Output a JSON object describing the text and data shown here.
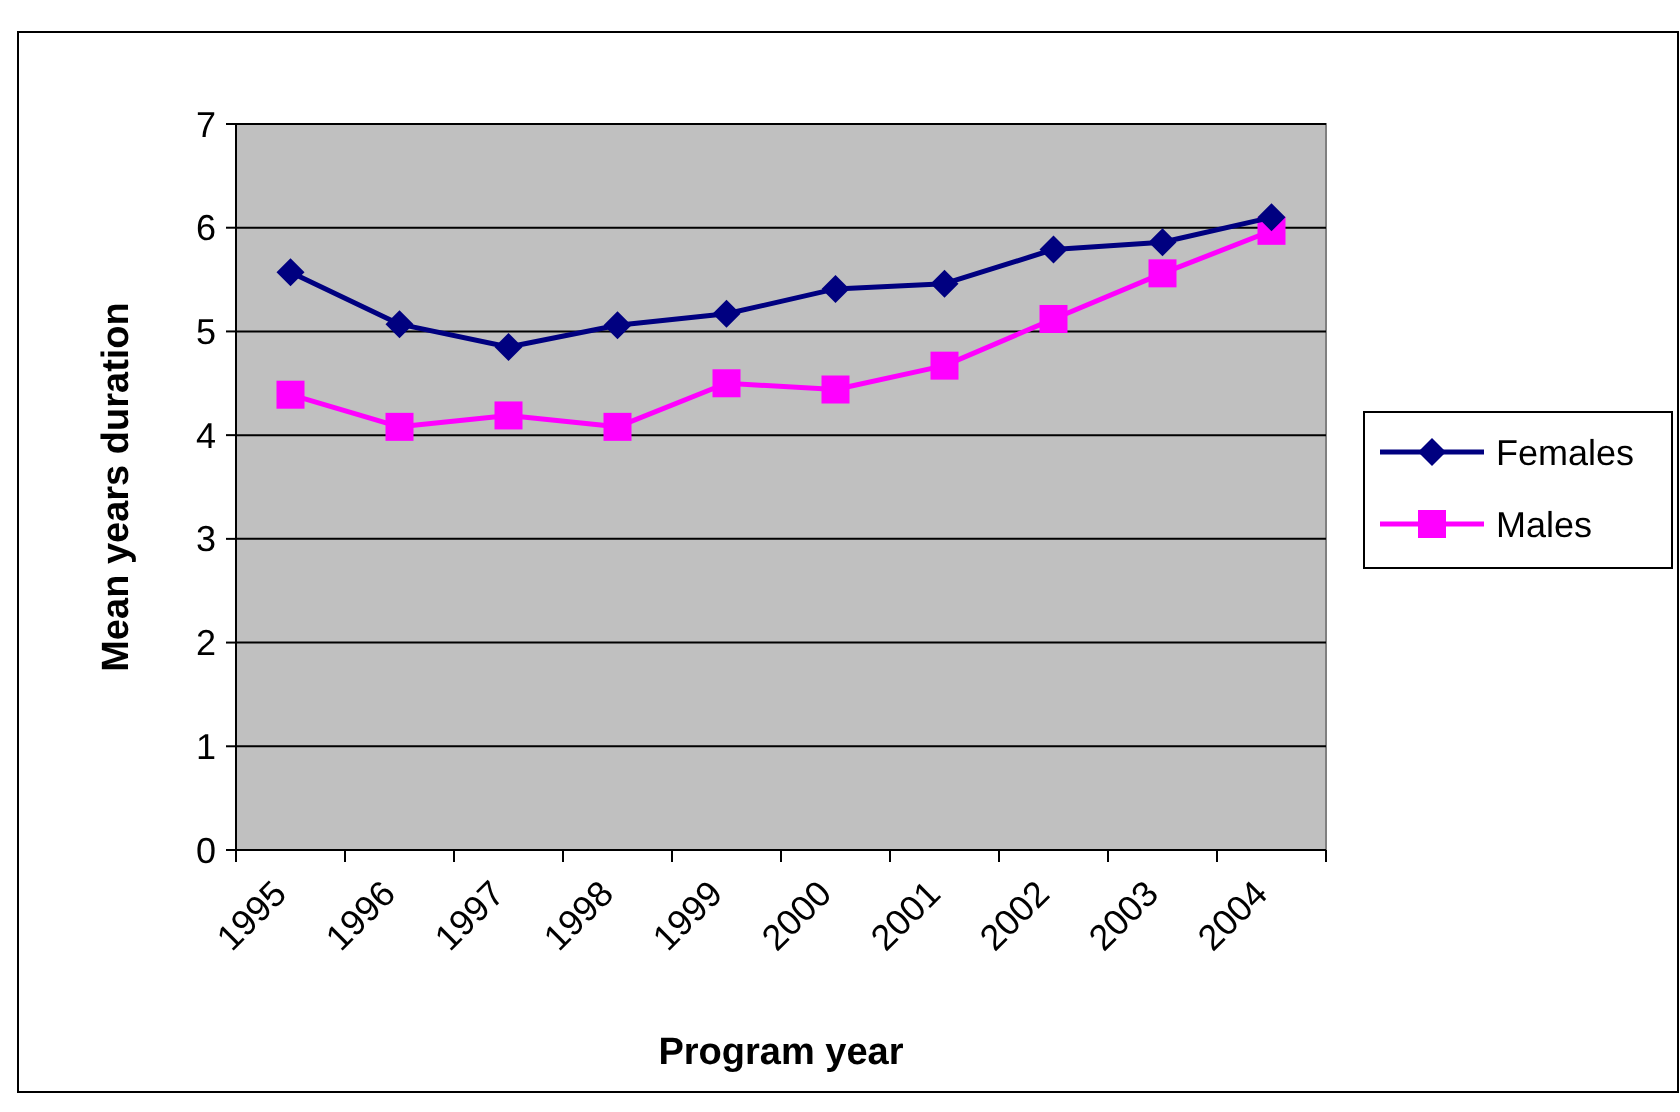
{
  "chart_data": {
    "type": "line",
    "xlabel": "Program  year",
    "ylabel": "Mean years duration",
    "categories": [
      "1995",
      "1996",
      "1997",
      "1998",
      "1999",
      "2000",
      "2001",
      "2002",
      "2003",
      "2004"
    ],
    "series": [
      {
        "name": "Females",
        "color": "#000080",
        "marker": "diamond",
        "values": [
          5.57,
          5.07,
          4.85,
          5.06,
          5.17,
          5.41,
          5.46,
          5.79,
          5.86,
          6.1
        ]
      },
      {
        "name": "Males",
        "color": "#ff00ff",
        "marker": "square",
        "values": [
          4.39,
          4.08,
          4.19,
          4.08,
          4.5,
          4.44,
          4.67,
          5.12,
          5.56,
          5.97
        ]
      }
    ],
    "ylim": [
      0,
      7
    ],
    "yticks": [
      0,
      1,
      2,
      3,
      4,
      5,
      6,
      7
    ],
    "grid": "y",
    "legend": "right"
  }
}
